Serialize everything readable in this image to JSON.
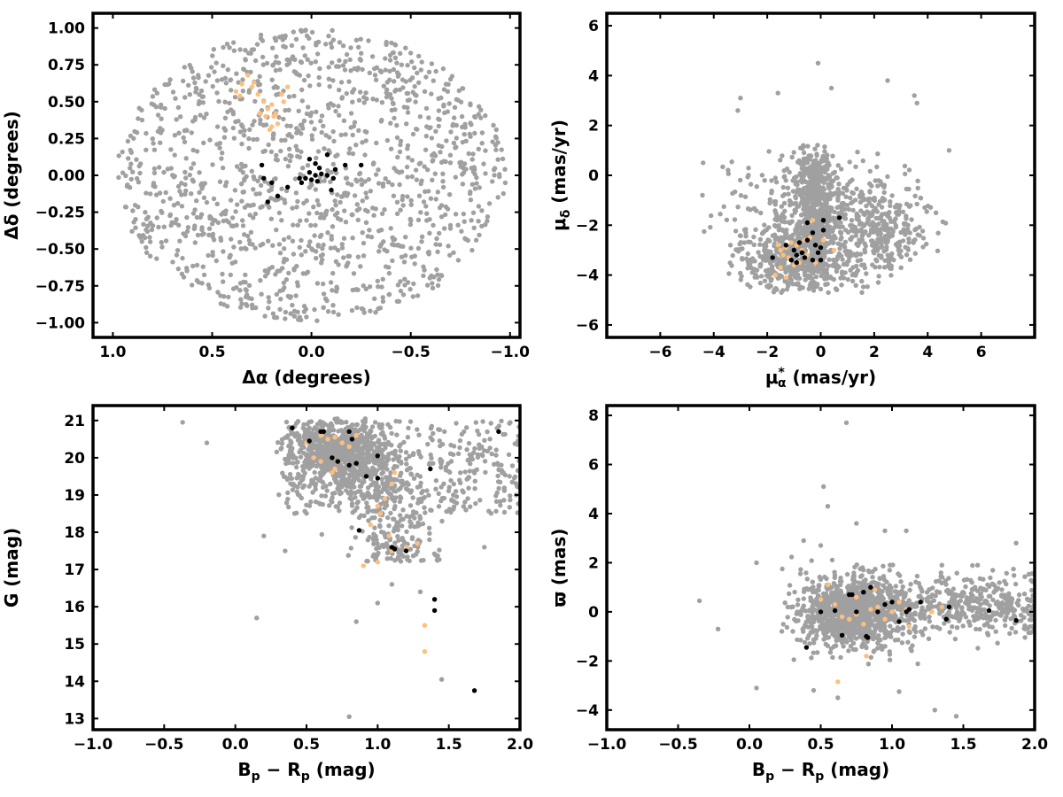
{
  "chart_data": [
    {
      "type": "scatter",
      "xlabel": "Δα (degrees)",
      "ylabel": "Δδ (degrees)",
      "xlim": [
        1.1,
        -1.05
      ],
      "ylim": [
        -1.1,
        1.1
      ],
      "x_inverted": true,
      "xticks": [
        1.0,
        0.5,
        0.0,
        -0.5,
        -1.0
      ],
      "xtick_labels": [
        "1.0",
        "0.5",
        "0.0",
        "−0.5",
        "−1.0"
      ],
      "yticks": [
        -1.0,
        -0.75,
        -0.5,
        -0.25,
        0.0,
        0.25,
        0.5,
        0.75,
        1.0
      ],
      "ytick_labels": [
        "−1.00",
        "−0.75",
        "−0.50",
        "−0.25",
        "0.00",
        "0.25",
        "0.50",
        "0.75",
        "1.00"
      ],
      "series": [
        {
          "color": "#a0a0a0",
          "generator": "disk",
          "params": {
            "cx": 0.0,
            "cy": 0.0,
            "rx": 0.98,
            "ry": 0.99
          },
          "count": 1350
        },
        {
          "color": "#fdbf7e",
          "points": [
            [
              0.35,
              0.62
            ],
            [
              0.32,
              0.68
            ],
            [
              0.3,
              0.6
            ],
            [
              0.27,
              0.55
            ],
            [
              0.38,
              0.57
            ],
            [
              0.24,
              0.5
            ],
            [
              0.22,
              0.45
            ],
            [
              0.2,
              0.48
            ],
            [
              0.19,
              0.4
            ],
            [
              0.18,
              0.42
            ],
            [
              0.15,
              0.55
            ],
            [
              0.12,
              0.6
            ],
            [
              0.26,
              0.42
            ],
            [
              0.23,
              0.4
            ],
            [
              0.2,
              0.33
            ],
            [
              0.21,
              0.31
            ],
            [
              0.29,
              0.63
            ],
            [
              0.36,
              0.54
            ],
            [
              0.17,
              0.35
            ],
            [
              0.14,
              0.5
            ]
          ]
        },
        {
          "color": "#000000",
          "points": [
            [
              0.25,
              0.07
            ],
            [
              0.24,
              -0.02
            ],
            [
              0.2,
              -0.05
            ],
            [
              0.17,
              -0.14
            ],
            [
              0.22,
              -0.18
            ],
            [
              0.12,
              -0.08
            ],
            [
              0.05,
              -0.05
            ],
            [
              0.03,
              -0.02
            ],
            [
              0.01,
              0.02
            ],
            [
              -0.02,
              0.08
            ],
            [
              -0.04,
              0.05
            ],
            [
              -0.05,
              0.01
            ],
            [
              -0.03,
              -0.04
            ],
            [
              0.0,
              -0.03
            ],
            [
              -0.08,
              0.0
            ],
            [
              -0.1,
              -0.1
            ],
            [
              -0.11,
              -0.02
            ],
            [
              -0.12,
              0.04
            ],
            [
              -0.17,
              0.07
            ],
            [
              -0.25,
              0.07
            ],
            [
              -0.08,
              0.14
            ],
            [
              0.01,
              0.11
            ],
            [
              0.06,
              -0.02
            ],
            [
              -0.02,
              0.0
            ]
          ]
        }
      ]
    },
    {
      "type": "scatter",
      "xlabel": "μ*α (mas/yr)",
      "ylabel": "μδ (mas/yr)",
      "xlim": [
        -8,
        8
      ],
      "ylim": [
        -6.5,
        6.5
      ],
      "xticks": [
        -6,
        -4,
        -2,
        0,
        2,
        4,
        6
      ],
      "xtick_labels": [
        "−6",
        "−4",
        "−2",
        "0",
        "2",
        "4",
        "6"
      ],
      "yticks": [
        -6,
        -4,
        -2,
        0,
        2,
        4,
        6
      ],
      "ytick_labels": [
        "−6",
        "−4",
        "−2",
        "0",
        "2",
        "4",
        "6"
      ],
      "series": [
        {
          "color": "#a0a0a0",
          "generator": "pm",
          "count": 1500
        },
        {
          "color": "#fdbf7e",
          "points": [
            [
              -1.6,
              -2.8
            ],
            [
              -1.5,
              -3.0
            ],
            [
              -1.4,
              -3.2
            ],
            [
              -1.3,
              -2.9
            ],
            [
              -1.2,
              -3.3
            ],
            [
              -1.0,
              -3.6
            ],
            [
              -0.9,
              -2.8
            ],
            [
              -0.8,
              -3.5
            ],
            [
              -0.7,
              -3.0
            ],
            [
              -0.5,
              -3.2
            ],
            [
              -0.4,
              -2.5
            ],
            [
              -0.3,
              -1.8
            ],
            [
              -1.7,
              -4.0
            ],
            [
              -1.5,
              -3.7
            ],
            [
              -1.3,
              -4.1
            ],
            [
              0.5,
              -3.0
            ],
            [
              -0.2,
              -3.5
            ],
            [
              0.1,
              -2.6
            ],
            [
              -0.6,
              -2.6
            ],
            [
              -1.1,
              -2.7
            ]
          ]
        },
        {
          "color": "#000000",
          "points": [
            [
              -1.8,
              -3.3
            ],
            [
              -1.3,
              -2.8
            ],
            [
              -1.0,
              -3.0
            ],
            [
              -0.9,
              -3.2
            ],
            [
              -0.8,
              -2.7
            ],
            [
              -0.7,
              -3.1
            ],
            [
              -0.6,
              -3.3
            ],
            [
              -0.5,
              -2.6
            ],
            [
              -0.5,
              -1.9
            ],
            [
              -0.3,
              -2.3
            ],
            [
              -0.2,
              -2.8
            ],
            [
              -0.1,
              -3.1
            ],
            [
              0.0,
              -3.4
            ],
            [
              0.1,
              -1.8
            ],
            [
              0.1,
              -2.2
            ],
            [
              -0.3,
              -3.4
            ],
            [
              -1.1,
              -3.4
            ],
            [
              0.7,
              -1.7
            ],
            [
              -0.9,
              -3.5
            ],
            [
              0.0,
              -2.9
            ]
          ]
        }
      ]
    },
    {
      "type": "scatter",
      "xlabel": "Bp − Rp (mag)",
      "ylabel": "G (mag)",
      "xlim": [
        -1.0,
        2.0
      ],
      "ylim": [
        12.7,
        21.4
      ],
      "xticks": [
        -1.0,
        -0.5,
        0.0,
        0.5,
        1.0,
        1.5,
        2.0
      ],
      "xtick_labels": [
        "−1.0",
        "−0.5",
        "0.0",
        "0.5",
        "1.0",
        "1.5",
        "2.0"
      ],
      "yticks": [
        13,
        14,
        15,
        16,
        17,
        18,
        19,
        20,
        21
      ],
      "ytick_labels": [
        "13",
        "14",
        "15",
        "16",
        "17",
        "18",
        "19",
        "20",
        "21"
      ],
      "series": [
        {
          "color": "#a0a0a0",
          "generator": "cmd",
          "count": 1400
        },
        {
          "color": "#fdbf7e",
          "points": [
            [
              0.5,
              20.4
            ],
            [
              0.6,
              20.6
            ],
            [
              0.65,
              20.5
            ],
            [
              0.7,
              20.55
            ],
            [
              0.75,
              20.4
            ],
            [
              0.8,
              20.3
            ],
            [
              0.85,
              20.6
            ],
            [
              0.55,
              20.0
            ],
            [
              0.6,
              19.9
            ],
            [
              0.7,
              19.7
            ],
            [
              0.68,
              19.6
            ],
            [
              1.0,
              18.7
            ],
            [
              1.02,
              18.5
            ],
            [
              1.05,
              18.9
            ],
            [
              1.1,
              19.3
            ],
            [
              1.12,
              19.6
            ],
            [
              0.9,
              17.1
            ],
            [
              1.0,
              17.2
            ],
            [
              1.1,
              17.5
            ],
            [
              1.2,
              17.6
            ],
            [
              1.28,
              17.7
            ],
            [
              1.33,
              15.5
            ],
            [
              1.33,
              14.8
            ],
            [
              0.95,
              18.2
            ],
            [
              1.08,
              17.9
            ]
          ]
        },
        {
          "color": "#000000",
          "points": [
            [
              0.4,
              20.8
            ],
            [
              0.52,
              20.45
            ],
            [
              0.6,
              20.7
            ],
            [
              0.62,
              20.7
            ],
            [
              0.68,
              20.0
            ],
            [
              0.72,
              19.9
            ],
            [
              0.8,
              20.7
            ],
            [
              0.82,
              20.5
            ],
            [
              0.8,
              19.8
            ],
            [
              0.85,
              19.85
            ],
            [
              0.92,
              19.5
            ],
            [
              1.0,
              19.45
            ],
            [
              1.0,
              20.05
            ],
            [
              0.87,
              18.05
            ],
            [
              1.1,
              17.6
            ],
            [
              1.12,
              17.55
            ],
            [
              1.2,
              17.5
            ],
            [
              1.37,
              19.7
            ],
            [
              1.4,
              16.2
            ],
            [
              1.4,
              15.9
            ],
            [
              1.68,
              13.75
            ],
            [
              1.85,
              20.7
            ]
          ]
        }
      ]
    },
    {
      "type": "scatter",
      "xlabel": "Bp − Rp (mag)",
      "ylabel": "ϖ (mas)",
      "xlim": [
        -1.0,
        2.0
      ],
      "ylim": [
        -4.8,
        8.4
      ],
      "xticks": [
        -1.0,
        -0.5,
        0.0,
        0.5,
        1.0,
        1.5,
        2.0
      ],
      "xtick_labels": [
        "−1.0",
        "−0.5",
        "0.0",
        "0.5",
        "1.0",
        "1.5",
        "2.0"
      ],
      "yticks": [
        -4,
        -2,
        0,
        2,
        4,
        6,
        8
      ],
      "ytick_labels": [
        "−4",
        "−2",
        "0",
        "2",
        "4",
        "6",
        "8"
      ],
      "series": [
        {
          "color": "#a0a0a0",
          "generator": "plx",
          "count": 1500
        },
        {
          "color": "#fdbf7e",
          "points": [
            [
              0.5,
              0.5
            ],
            [
              0.55,
              1.1
            ],
            [
              0.6,
              0.3
            ],
            [
              0.65,
              -0.2
            ],
            [
              0.7,
              -0.3
            ],
            [
              0.75,
              -0.1
            ],
            [
              0.8,
              -0.5
            ],
            [
              0.85,
              0.1
            ],
            [
              0.9,
              0.2
            ],
            [
              0.95,
              -0.3
            ],
            [
              1.0,
              0.0
            ],
            [
              1.05,
              0.4
            ],
            [
              1.1,
              0.1
            ],
            [
              1.12,
              -0.6
            ],
            [
              1.28,
              0.0
            ],
            [
              1.35,
              0.2
            ],
            [
              0.62,
              -2.85
            ],
            [
              0.82,
              -1.8
            ],
            [
              0.75,
              0.6
            ],
            [
              0.88,
              0.9
            ]
          ]
        },
        {
          "color": "#000000",
          "points": [
            [
              0.4,
              -1.45
            ],
            [
              0.5,
              0.0
            ],
            [
              0.6,
              0.05
            ],
            [
              0.65,
              -0.95
            ],
            [
              0.7,
              0.7
            ],
            [
              0.72,
              0.7
            ],
            [
              0.8,
              0.8
            ],
            [
              0.82,
              -1.0
            ],
            [
              0.83,
              -1.05
            ],
            [
              0.85,
              1.0
            ],
            [
              0.9,
              0.0
            ],
            [
              0.95,
              0.3
            ],
            [
              1.0,
              0.4
            ],
            [
              1.05,
              -0.4
            ],
            [
              1.1,
              0.0
            ],
            [
              1.12,
              0.1
            ],
            [
              1.2,
              0.4
            ],
            [
              1.38,
              -0.3
            ],
            [
              1.4,
              0.2
            ],
            [
              1.68,
              0.05
            ],
            [
              1.87,
              -0.35
            ],
            [
              0.75,
              0.0
            ]
          ]
        }
      ]
    }
  ]
}
